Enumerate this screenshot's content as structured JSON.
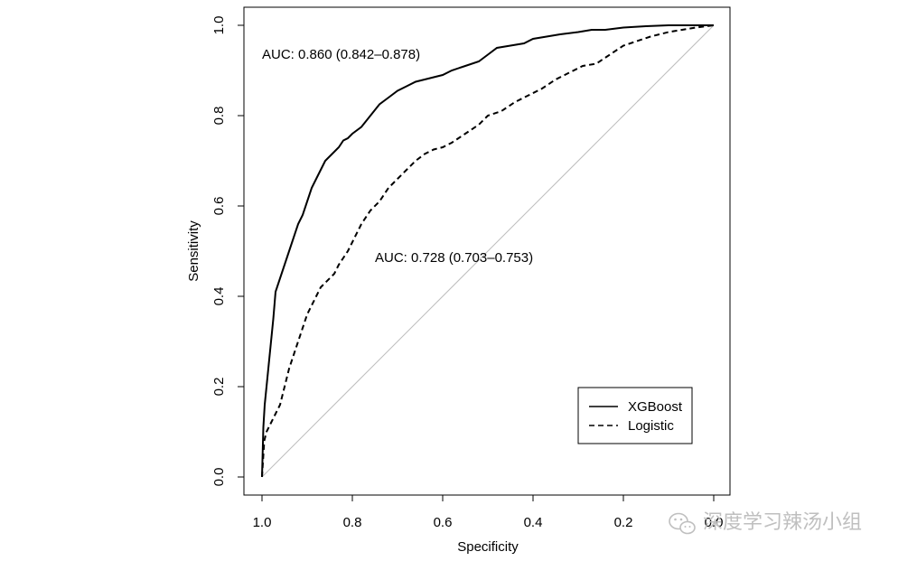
{
  "chart_data": {
    "type": "line",
    "title": "",
    "xlabel": "Specificity",
    "ylabel": "Sensitivity",
    "xlim": [
      1.0,
      0.0
    ],
    "ylim": [
      0.0,
      1.0
    ],
    "x_reversed": true,
    "x_ticks": [
      "1.0",
      "0.8",
      "0.6",
      "0.4",
      "0.2",
      "0.0"
    ],
    "y_ticks": [
      "0.0",
      "0.2",
      "0.4",
      "0.6",
      "0.8",
      "1.0"
    ],
    "grid": false,
    "legend_position": "bottom-right",
    "series": [
      {
        "name": "XGBoost",
        "style": "solid",
        "auc_label": "AUC: 0.860 (0.842–0.878)",
        "x": [
          1.0,
          0.997,
          0.994,
          0.99,
          0.985,
          0.98,
          0.975,
          0.97,
          0.96,
          0.95,
          0.94,
          0.93,
          0.92,
          0.91,
          0.9,
          0.89,
          0.88,
          0.87,
          0.86,
          0.85,
          0.84,
          0.83,
          0.82,
          0.81,
          0.8,
          0.78,
          0.76,
          0.74,
          0.72,
          0.7,
          0.68,
          0.66,
          0.64,
          0.62,
          0.6,
          0.58,
          0.55,
          0.52,
          0.5,
          0.48,
          0.45,
          0.42,
          0.4,
          0.37,
          0.34,
          0.3,
          0.27,
          0.24,
          0.2,
          0.15,
          0.1,
          0.05,
          0.0
        ],
        "y": [
          0.0,
          0.11,
          0.16,
          0.2,
          0.25,
          0.3,
          0.35,
          0.41,
          0.44,
          0.47,
          0.5,
          0.53,
          0.56,
          0.58,
          0.61,
          0.64,
          0.66,
          0.68,
          0.7,
          0.71,
          0.72,
          0.73,
          0.745,
          0.75,
          0.76,
          0.775,
          0.8,
          0.825,
          0.84,
          0.855,
          0.865,
          0.875,
          0.88,
          0.885,
          0.89,
          0.9,
          0.91,
          0.92,
          0.935,
          0.95,
          0.955,
          0.96,
          0.97,
          0.975,
          0.98,
          0.985,
          0.99,
          0.99,
          0.995,
          0.998,
          1.0,
          1.0,
          1.0
        ]
      },
      {
        "name": "Logistic",
        "style": "dashed",
        "auc_label": "AUC: 0.728 (0.703–0.753)",
        "x": [
          1.0,
          0.995,
          0.99,
          0.98,
          0.97,
          0.96,
          0.95,
          0.94,
          0.93,
          0.92,
          0.91,
          0.9,
          0.89,
          0.88,
          0.87,
          0.86,
          0.85,
          0.84,
          0.83,
          0.82,
          0.81,
          0.8,
          0.78,
          0.76,
          0.74,
          0.72,
          0.7,
          0.68,
          0.66,
          0.64,
          0.62,
          0.6,
          0.58,
          0.55,
          0.52,
          0.5,
          0.47,
          0.44,
          0.41,
          0.38,
          0.35,
          0.32,
          0.29,
          0.26,
          0.23,
          0.2,
          0.17,
          0.14,
          0.1,
          0.07,
          0.04,
          0.0
        ],
        "y": [
          0.0,
          0.08,
          0.1,
          0.12,
          0.14,
          0.16,
          0.2,
          0.24,
          0.27,
          0.3,
          0.33,
          0.36,
          0.38,
          0.4,
          0.42,
          0.43,
          0.44,
          0.45,
          0.47,
          0.485,
          0.5,
          0.52,
          0.56,
          0.59,
          0.61,
          0.64,
          0.66,
          0.68,
          0.7,
          0.715,
          0.725,
          0.73,
          0.74,
          0.76,
          0.78,
          0.8,
          0.81,
          0.83,
          0.845,
          0.86,
          0.88,
          0.895,
          0.91,
          0.915,
          0.935,
          0.955,
          0.965,
          0.975,
          0.985,
          0.99,
          0.995,
          1.0
        ]
      }
    ],
    "reference_line": {
      "x": [
        1.0,
        0.0
      ],
      "y": [
        0.0,
        1.0
      ],
      "color": "#bdbdbd"
    }
  },
  "colors": {
    "line": "#000000",
    "reference": "#bdbdbd",
    "watermark": "#bfbfbf"
  },
  "watermark": {
    "icon": "wechat-icon",
    "text": "深度学习辣汤小组"
  }
}
